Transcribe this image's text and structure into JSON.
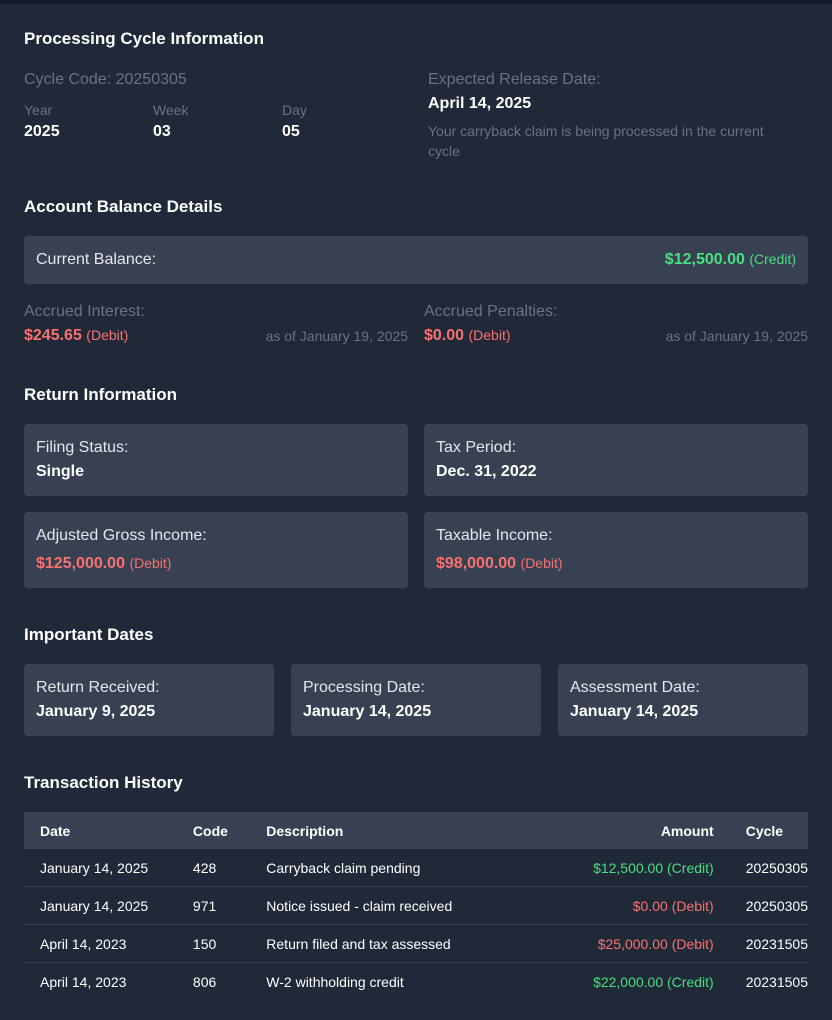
{
  "processing": {
    "title": "Processing Cycle Information",
    "cycle_code": "Cycle Code: 20250305",
    "year_label": "Year",
    "year_value": "2025",
    "week_label": "Week",
    "week_value": "03",
    "day_label": "Day",
    "day_value": "05",
    "release_label": "Expected Release Date:",
    "release_value": "April 14, 2025",
    "release_note": "Your carryback claim is being processed in the current cycle"
  },
  "balance": {
    "title": "Account Balance Details",
    "current_label": "Current Balance:",
    "current_value": "$12,500.00",
    "current_tag": "(Credit)",
    "interest_label": "Accrued Interest:",
    "interest_value": "$245.65",
    "interest_tag": "(Debit)",
    "interest_asof": "as of January 19, 2025",
    "penalties_label": "Accrued Penalties:",
    "penalties_value": "$0.00",
    "penalties_tag": "(Debit)",
    "penalties_asof": "as of January 19, 2025"
  },
  "return_info": {
    "title": "Return Information",
    "filing_label": "Filing Status:",
    "filing_value": "Single",
    "period_label": "Tax Period:",
    "period_value": "Dec. 31, 2022",
    "agi_label": "Adjusted Gross Income:",
    "agi_value": "$125,000.00",
    "agi_tag": "(Debit)",
    "taxable_label": "Taxable Income:",
    "taxable_value": "$98,000.00",
    "taxable_tag": "(Debit)"
  },
  "dates": {
    "title": "Important Dates",
    "received_label": "Return Received:",
    "received_value": "January 9, 2025",
    "processing_label": "Processing Date:",
    "processing_value": "January 14, 2025",
    "assessment_label": "Assessment Date:",
    "assessment_value": "January 14, 2025"
  },
  "history": {
    "title": "Transaction History",
    "headers": {
      "date": "Date",
      "code": "Code",
      "description": "Description",
      "amount": "Amount",
      "cycle": "Cycle"
    },
    "rows": [
      {
        "date": "January 14, 2025",
        "code": "428",
        "description": "Carryback claim pending",
        "amount": "$12,500.00 (Credit)",
        "cycle": "20250305"
      },
      {
        "date": "January 14, 2025",
        "code": "971",
        "description": "Notice issued - claim received",
        "amount": "$0.00 (Debit)",
        "cycle": "20250305"
      },
      {
        "date": "April 14, 2023",
        "code": "150",
        "description": "Return filed and tax assessed",
        "amount": "$25,000.00 (Debit)",
        "cycle": "20231505"
      },
      {
        "date": "April 14, 2023",
        "code": "806",
        "description": "W-2 withholding credit",
        "amount": "$22,000.00 (Credit)",
        "cycle": "20231505"
      }
    ]
  },
  "colors": {
    "credit": "#4ade80",
    "debit": "#f87171",
    "card": "#374151",
    "background": "#1f2937"
  }
}
